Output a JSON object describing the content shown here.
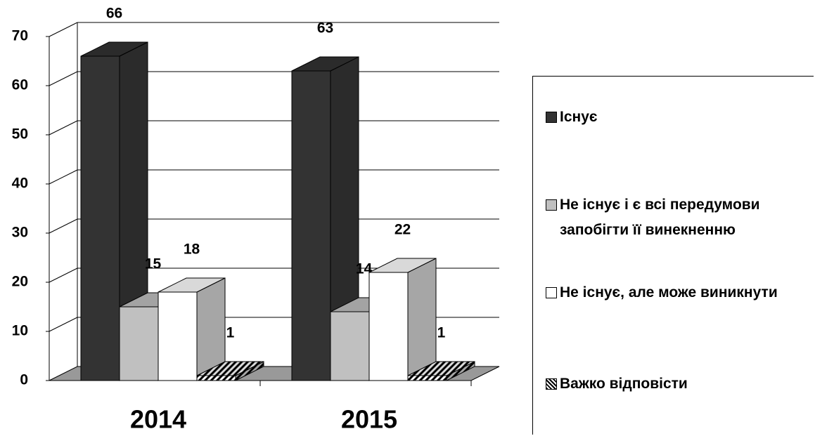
{
  "chart_data": {
    "type": "bar3d",
    "categories": [
      "2014",
      "2015"
    ],
    "series": [
      {
        "name": "Існує",
        "color": "#333333",
        "values": [
          66,
          63
        ]
      },
      {
        "name": "Не існує і є всі передумови запобігти її винекненню",
        "color": "#c0c0c0",
        "values": [
          15,
          14
        ]
      },
      {
        "name": "Не існує, але може виникнути",
        "color": "#ffffff",
        "values": [
          18,
          22
        ]
      },
      {
        "name": "Важко відповісти",
        "color": "#ffffff",
        "pattern": "diagonal",
        "values": [
          1,
          1
        ]
      }
    ],
    "ylim": [
      0,
      70
    ],
    "yticks": [
      0,
      10,
      20,
      30,
      40,
      50,
      60,
      70
    ],
    "grid": true,
    "legend": "right"
  }
}
